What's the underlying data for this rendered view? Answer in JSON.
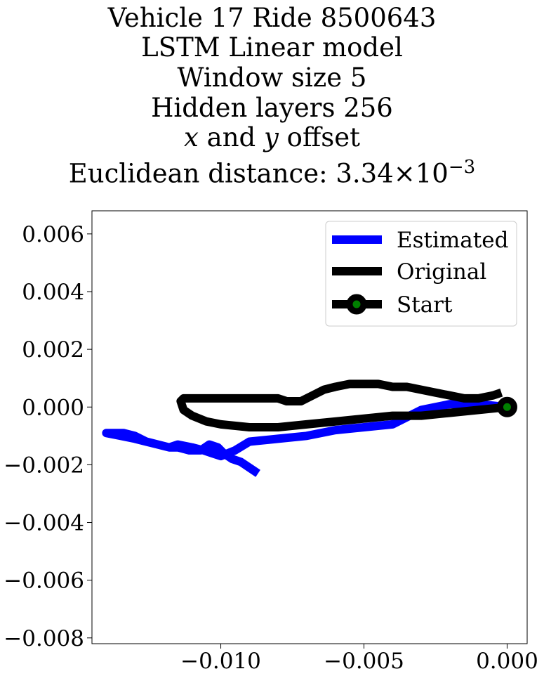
{
  "title": {
    "line1": "Vehicle 17 Ride 8500643",
    "line2": "LSTM Linear model",
    "line3": "Window size 5",
    "line4": "Hidden layers 256",
    "line5_x": "x",
    "line5_and": " and ",
    "line5_y": "y",
    "line5_rest": " offset",
    "line6_prefix": "Euclidean distance: 3.34",
    "line6_times": "×",
    "line6_base": "10",
    "line6_exp": "−3"
  },
  "chart_data": {
    "type": "line",
    "xlim": [
      -0.0145,
      0.0007
    ],
    "ylim": [
      -0.0082,
      0.0068
    ],
    "x_ticks": [
      -0.01,
      -0.005,
      0.0
    ],
    "x_tick_labels": [
      "−0.010",
      "−0.005",
      "0.000"
    ],
    "y_ticks": [
      0.006,
      0.004,
      0.002,
      0.0,
      -0.002,
      -0.004,
      -0.006,
      -0.008
    ],
    "y_tick_labels": [
      "0.006",
      "0.004",
      "0.002",
      "0.000",
      "−0.002",
      "−0.004",
      "−0.006",
      "−0.008"
    ],
    "grid": false,
    "legend_position": "top-right",
    "series": [
      {
        "name": "Estimated",
        "color": "#0000ff",
        "x": [
          0.0,
          -0.001,
          -0.002,
          -0.003,
          -0.004,
          -0.005,
          -0.006,
          -0.007,
          -0.008,
          -0.009,
          -0.0095,
          -0.01,
          -0.0103,
          -0.0106,
          -0.011,
          -0.0115,
          -0.0118,
          -0.0122,
          -0.0126,
          -0.013,
          -0.0134,
          -0.0138,
          -0.014,
          -0.0135,
          -0.013,
          -0.0126,
          -0.0122,
          -0.0118,
          -0.0115,
          -0.0111,
          -0.0107,
          -0.0104,
          -0.0101,
          -0.0099,
          -0.0096,
          -0.0093,
          -0.009,
          -0.0087
        ],
        "y": [
          0.0,
          0.0001,
          0.0001,
          -0.0001,
          -0.0006,
          -0.0007,
          -0.0008,
          -0.001,
          -0.0011,
          -0.0012,
          -0.0015,
          -0.0017,
          -0.0016,
          -0.0015,
          -0.0014,
          -0.0013,
          -0.0014,
          -0.0013,
          -0.0012,
          -0.001,
          -0.0009,
          -0.0009,
          -0.0009,
          -0.001,
          -0.0011,
          -0.0012,
          -0.0013,
          -0.0014,
          -0.0014,
          -0.0015,
          -0.0015,
          -0.0013,
          -0.0014,
          -0.0016,
          -0.0018,
          -0.0019,
          -0.0021,
          -0.0023
        ]
      },
      {
        "name": "Original",
        "color": "#000000",
        "x": [
          0.0,
          -0.001,
          -0.002,
          -0.003,
          -0.004,
          -0.005,
          -0.006,
          -0.007,
          -0.008,
          -0.009,
          -0.01,
          -0.0105,
          -0.011,
          -0.0113,
          -0.0114,
          -0.0113,
          -0.0111,
          -0.0108,
          -0.0104,
          -0.01,
          -0.0095,
          -0.009,
          -0.0085,
          -0.008,
          -0.0077,
          -0.0075,
          -0.0072,
          -0.0068,
          -0.0064,
          -0.006,
          -0.0055,
          -0.005,
          -0.0045,
          -0.004,
          -0.0035,
          -0.003,
          -0.0025,
          -0.002,
          -0.0015,
          -0.001,
          -0.0005,
          -0.0002
        ],
        "y": [
          0.0,
          -0.0001,
          -0.0002,
          -0.0003,
          -0.0003,
          -0.0004,
          -0.0005,
          -0.0006,
          -0.0007,
          -0.0007,
          -0.0006,
          -0.0005,
          -0.0003,
          -0.0001,
          0.0002,
          0.0003,
          0.0003,
          0.0003,
          0.0003,
          0.0003,
          0.0003,
          0.0003,
          0.0003,
          0.0003,
          0.0002,
          0.0002,
          0.0002,
          0.0004,
          0.0006,
          0.0007,
          0.0008,
          0.0008,
          0.0008,
          0.0007,
          0.0007,
          0.0006,
          0.0005,
          0.0004,
          0.0003,
          0.0003,
          0.0004,
          0.0005
        ]
      }
    ],
    "start_marker": {
      "name": "Start",
      "x": 0.0,
      "y": 0.0,
      "edge_color": "#000000",
      "face_color": "#008000"
    }
  }
}
